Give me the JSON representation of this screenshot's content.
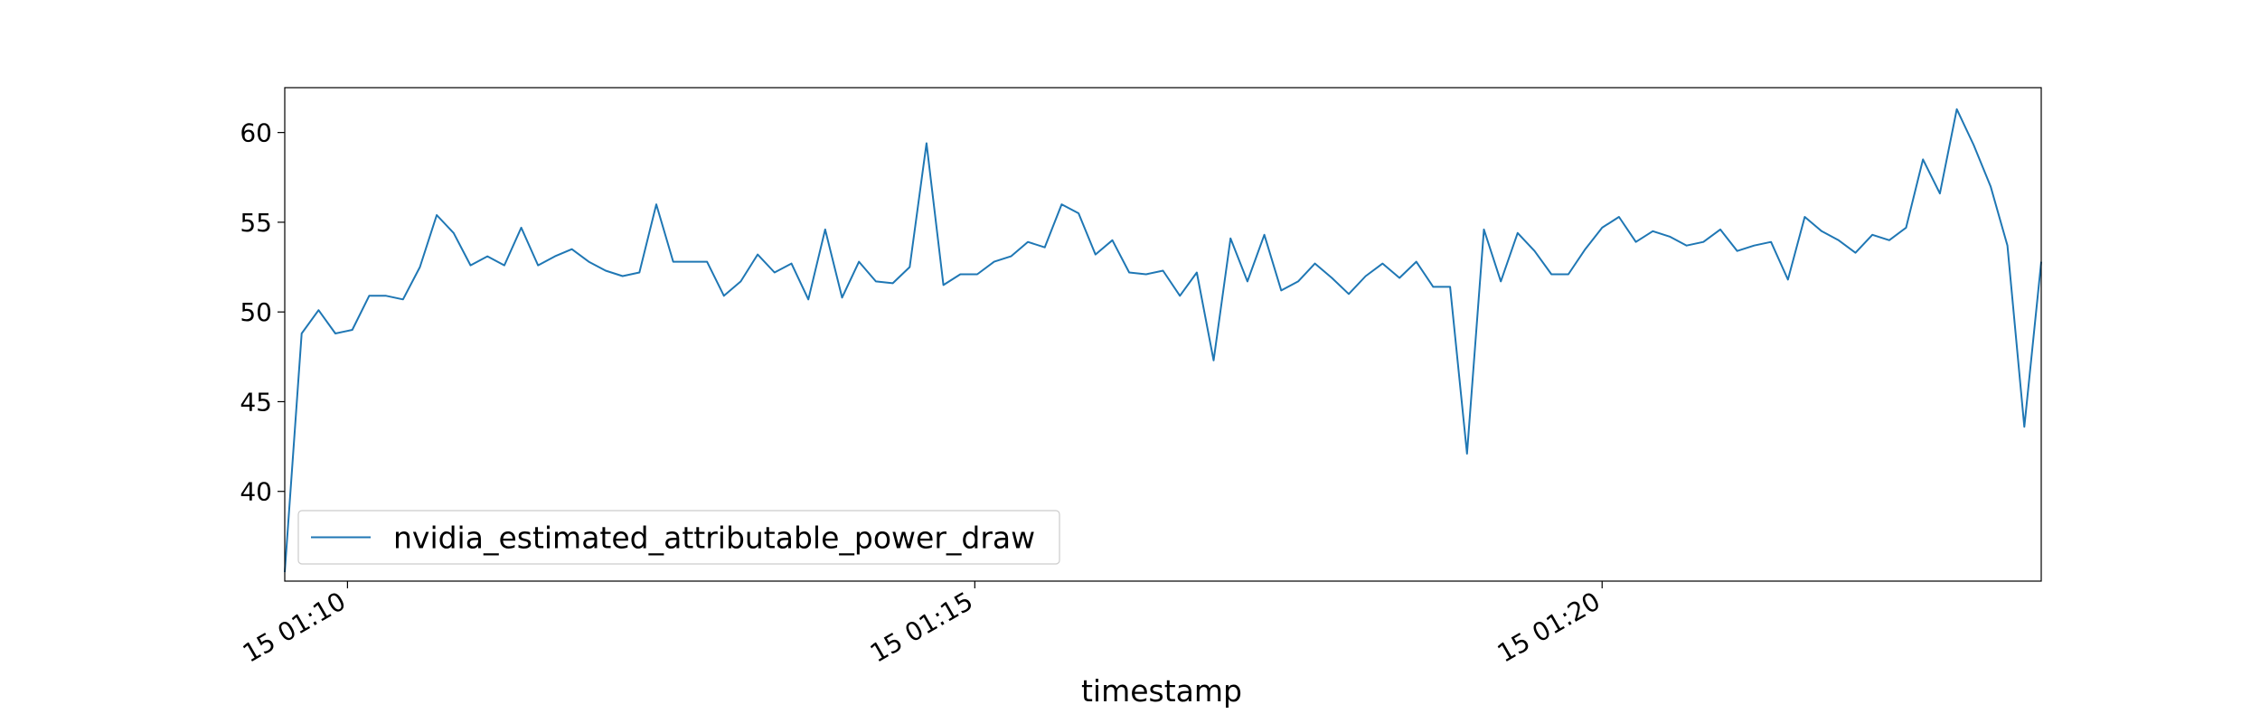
{
  "chart_data": {
    "type": "line",
    "title": "",
    "xlabel": "timestamp",
    "ylabel": "",
    "x_ticks": [
      "15 01:10",
      "15 01:15",
      "15 01:20"
    ],
    "y_ticks": [
      "40",
      "45",
      "50",
      "55",
      "60"
    ],
    "ylim": [
      35.0,
      62.5
    ],
    "xlim": [
      "2024-01-15 01:09:30",
      "2024-01-15 01:23:30"
    ],
    "grid": false,
    "legend": "lower-left",
    "series": [
      {
        "name": "nvidia_estimated_attributable_power_draw",
        "color": "#1f77b4",
        "values": [
          35.5,
          48.8,
          50.1,
          48.8,
          49.0,
          50.9,
          50.9,
          50.7,
          52.5,
          55.4,
          54.4,
          52.6,
          53.1,
          52.6,
          54.7,
          52.6,
          53.1,
          53.5,
          52.8,
          52.3,
          52.0,
          52.2,
          56.0,
          52.8,
          52.8,
          52.8,
          50.9,
          51.7,
          53.2,
          52.2,
          52.7,
          50.7,
          54.6,
          50.8,
          52.8,
          51.7,
          51.6,
          52.5,
          59.4,
          51.5,
          52.1,
          52.1,
          52.8,
          53.1,
          53.9,
          53.6,
          56.0,
          55.5,
          53.2,
          54.0,
          52.2,
          52.1,
          52.3,
          50.9,
          52.2,
          47.3,
          54.1,
          51.7,
          54.3,
          51.2,
          51.7,
          52.7,
          51.9,
          51.0,
          52.0,
          52.7,
          51.9,
          52.8,
          51.4,
          51.4,
          42.1,
          54.6,
          51.7,
          54.4,
          53.4,
          52.1,
          52.1,
          53.5,
          54.7,
          55.3,
          53.9,
          54.5,
          54.2,
          53.7,
          53.9,
          54.6,
          53.4,
          53.7,
          53.9,
          51.8,
          55.3,
          54.5,
          54.0,
          53.3,
          54.3,
          54.0,
          54.7,
          58.5,
          56.6,
          61.3,
          59.3,
          57.0,
          53.7,
          43.6,
          52.8
        ]
      }
    ]
  }
}
